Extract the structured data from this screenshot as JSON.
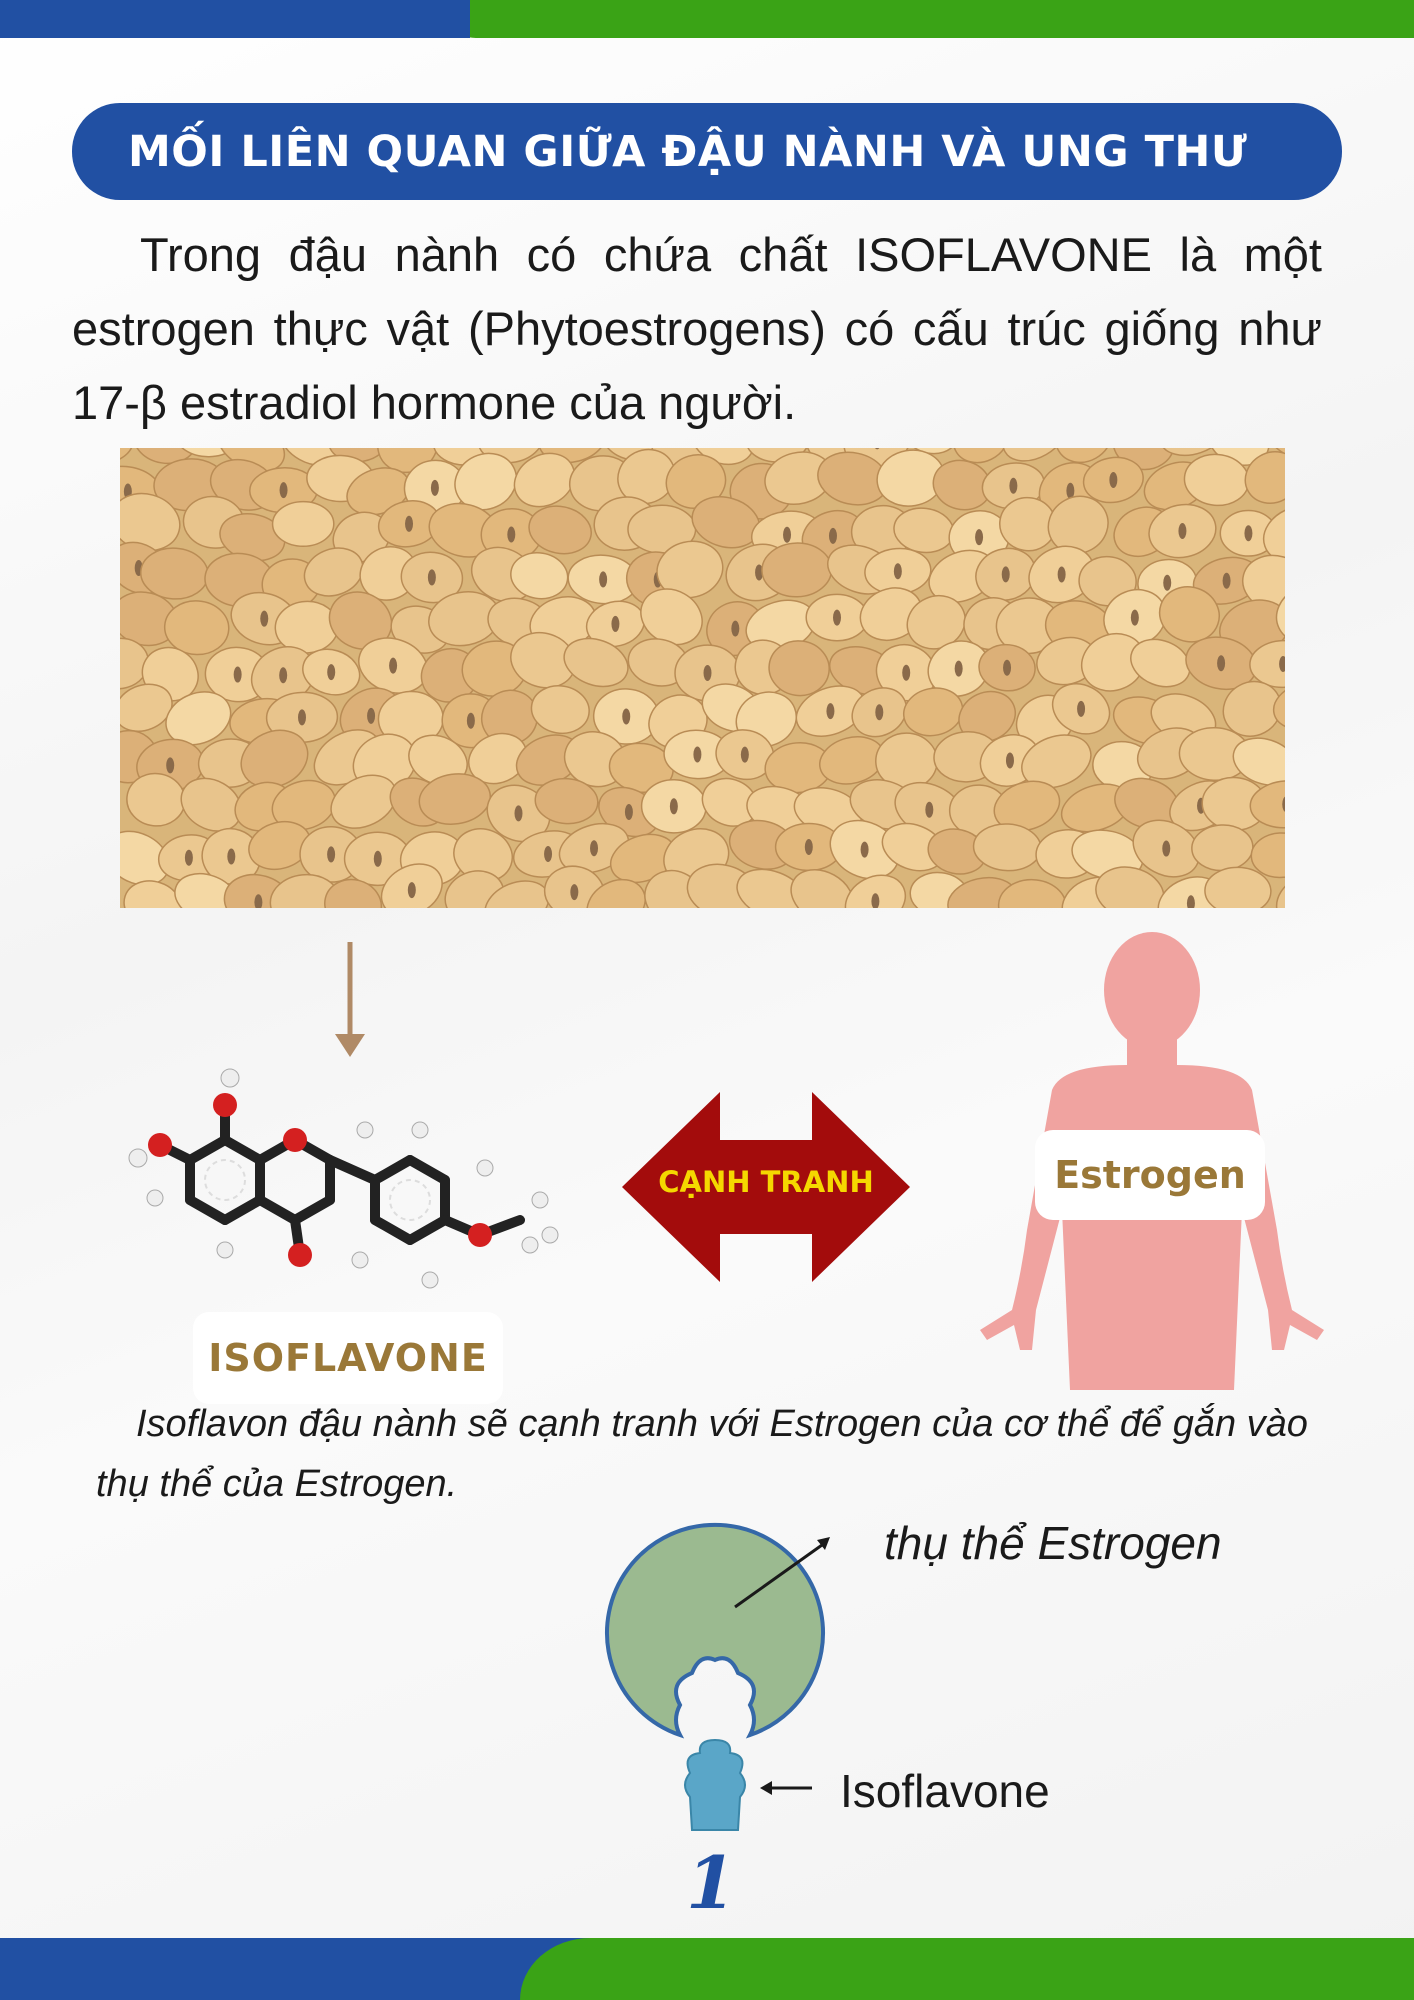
{
  "colors": {
    "brand_blue": "#2150a3",
    "brand_green": "#3aa316",
    "label_gold": "#9a7838",
    "compete_red": "#a30c0c",
    "compete_text": "#f5d800",
    "body_pink": "#f0a3a0",
    "receptor_green": "#9bba90",
    "isoflavone_blue": "#5aa6c8"
  },
  "header": {
    "title": "MỐI LIÊN QUAN GIỮA ĐẬU NÀNH VÀ UNG THƯ"
  },
  "intro": {
    "text": "Trong đậu nành có chứa chất ISOFLAVONE là một estrogen thực vật (Phytoestrogens) có cấu trúc giống như 17-β estradiol hormone của người."
  },
  "images": {
    "soybeans": "soybeans-photo",
    "molecule": "isoflavone-molecule-model",
    "body": "human-body-silhouette"
  },
  "diagram": {
    "molecule_label": "ISOFLAVONE",
    "compete_label": "CẠNH TRANH",
    "body_label": "Estrogen"
  },
  "caption": {
    "text": "Isoflavon đậu nành sẽ cạnh tranh với Estrogen của cơ thể để gắn vào thụ thể của Estrogen."
  },
  "receptor_diagram": {
    "receptor_label": "thụ thể Estrogen",
    "isoflavone_label": "Isoflavone"
  },
  "footer": {
    "page_number": "1"
  }
}
